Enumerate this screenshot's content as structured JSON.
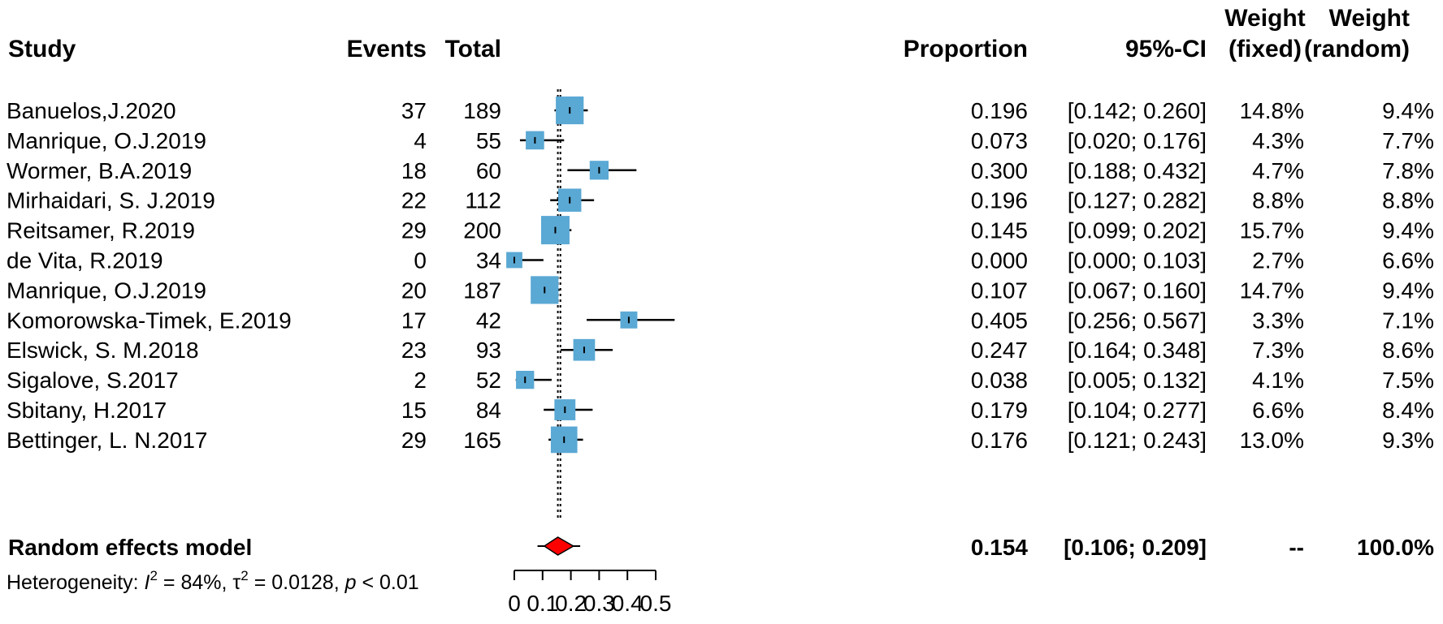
{
  "headers": {
    "study": "Study",
    "events": "Events",
    "total": "Total",
    "proportion": "Proportion",
    "ci": "95%-CI",
    "weight_fixed_1": "Weight",
    "weight_fixed_2": "(fixed)",
    "weight_random_1": "Weight",
    "weight_random_2": "(random)"
  },
  "chart_data": {
    "type": "forest",
    "x_ticks": [
      "0",
      "0.1",
      "0.2",
      "0.3",
      "0.4",
      "0.5"
    ],
    "xlim": [
      0,
      0.5
    ],
    "fixed_line_x": 0.163,
    "colors": {
      "box": "#5aa8d4",
      "diamond": "#ff0000",
      "line": "#000000"
    },
    "studies": [
      {
        "study": "Banuelos,J.2020",
        "events": "37",
        "total": "189",
        "prop": 0.196,
        "lo": 0.142,
        "hi": 0.26,
        "prop_text": "0.196",
        "ci_text": "[0.142; 0.260]",
        "w_fixed": "14.8%",
        "w_random": "9.4%",
        "wf": 14.8
      },
      {
        "study": "Manrique, O.J.2019",
        "events": "4",
        "total": "55",
        "prop": 0.073,
        "lo": 0.02,
        "hi": 0.176,
        "prop_text": "0.073",
        "ci_text": "[0.020; 0.176]",
        "w_fixed": "4.3%",
        "w_random": "7.7%",
        "wf": 4.3
      },
      {
        "study": "Wormer, B.A.2019",
        "events": "18",
        "total": "60",
        "prop": 0.3,
        "lo": 0.188,
        "hi": 0.432,
        "prop_text": "0.300",
        "ci_text": "[0.188; 0.432]",
        "w_fixed": "4.7%",
        "w_random": "7.8%",
        "wf": 4.7
      },
      {
        "study": "Mirhaidari, S. J.2019",
        "events": "22",
        "total": "112",
        "prop": 0.196,
        "lo": 0.127,
        "hi": 0.282,
        "prop_text": "0.196",
        "ci_text": "[0.127; 0.282]",
        "w_fixed": "8.8%",
        "w_random": "8.8%",
        "wf": 8.8
      },
      {
        "study": "Reitsamer, R.2019",
        "events": "29",
        "total": "200",
        "prop": 0.145,
        "lo": 0.099,
        "hi": 0.202,
        "prop_text": "0.145",
        "ci_text": "[0.099; 0.202]",
        "w_fixed": "15.7%",
        "w_random": "9.4%",
        "wf": 15.7
      },
      {
        "study": "de Vita, R.2019",
        "events": "0",
        "total": "34",
        "prop": 0.0,
        "lo": 0.0,
        "hi": 0.103,
        "prop_text": "0.000",
        "ci_text": "[0.000; 0.103]",
        "w_fixed": "2.7%",
        "w_random": "6.6%",
        "wf": 2.7
      },
      {
        "study": "Manrique, O.J.2019",
        "events": "20",
        "total": "187",
        "prop": 0.107,
        "lo": 0.067,
        "hi": 0.16,
        "prop_text": "0.107",
        "ci_text": "[0.067; 0.160]",
        "w_fixed": "14.7%",
        "w_random": "9.4%",
        "wf": 14.7
      },
      {
        "study": "Komorowska-Timek, E.2019",
        "events": "17",
        "total": "42",
        "prop": 0.405,
        "lo": 0.256,
        "hi": 0.567,
        "prop_text": "0.405",
        "ci_text": "[0.256; 0.567]",
        "w_fixed": "3.3%",
        "w_random": "7.1%",
        "wf": 3.3
      },
      {
        "study": "Elswick, S. M.2018",
        "events": "23",
        "total": "93",
        "prop": 0.247,
        "lo": 0.164,
        "hi": 0.348,
        "prop_text": "0.247",
        "ci_text": "[0.164; 0.348]",
        "w_fixed": "7.3%",
        "w_random": "8.6%",
        "wf": 7.3
      },
      {
        "study": "Sigalove, S.2017",
        "events": "2",
        "total": "52",
        "prop": 0.038,
        "lo": 0.005,
        "hi": 0.132,
        "prop_text": "0.038",
        "ci_text": "[0.005; 0.132]",
        "w_fixed": "4.1%",
        "w_random": "7.5%",
        "wf": 4.1
      },
      {
        "study": "Sbitany, H.2017",
        "events": "15",
        "total": "84",
        "prop": 0.179,
        "lo": 0.104,
        "hi": 0.277,
        "prop_text": "0.179",
        "ci_text": "[0.104; 0.277]",
        "w_fixed": "6.6%",
        "w_random": "8.4%",
        "wf": 6.6
      },
      {
        "study": "Bettinger, L. N.2017",
        "events": "29",
        "total": "165",
        "prop": 0.176,
        "lo": 0.121,
        "hi": 0.243,
        "prop_text": "0.176",
        "ci_text": "[0.121; 0.243]",
        "w_fixed": "13.0%",
        "w_random": "9.3%",
        "wf": 13.0
      }
    ],
    "summary": {
      "label": "Random effects model",
      "prop": 0.154,
      "lo": 0.106,
      "hi": 0.209,
      "prop_text": "0.154",
      "ci_text": "[0.106; 0.209]",
      "w_fixed": "--",
      "w_random": "100.0%",
      "pred_lo": 0.105,
      "pred_hi": 0.21
    },
    "heterogeneity": {
      "prefix": "Heterogeneity: ",
      "i2_sym": "I",
      "i2_sup": "2",
      "i2_val": " = 84%, ",
      "tau_sym": "τ",
      "tau_sup": "2",
      "tau_val": " = 0.0128, ",
      "p_sym": "p",
      "p_val": " < 0.01"
    }
  }
}
